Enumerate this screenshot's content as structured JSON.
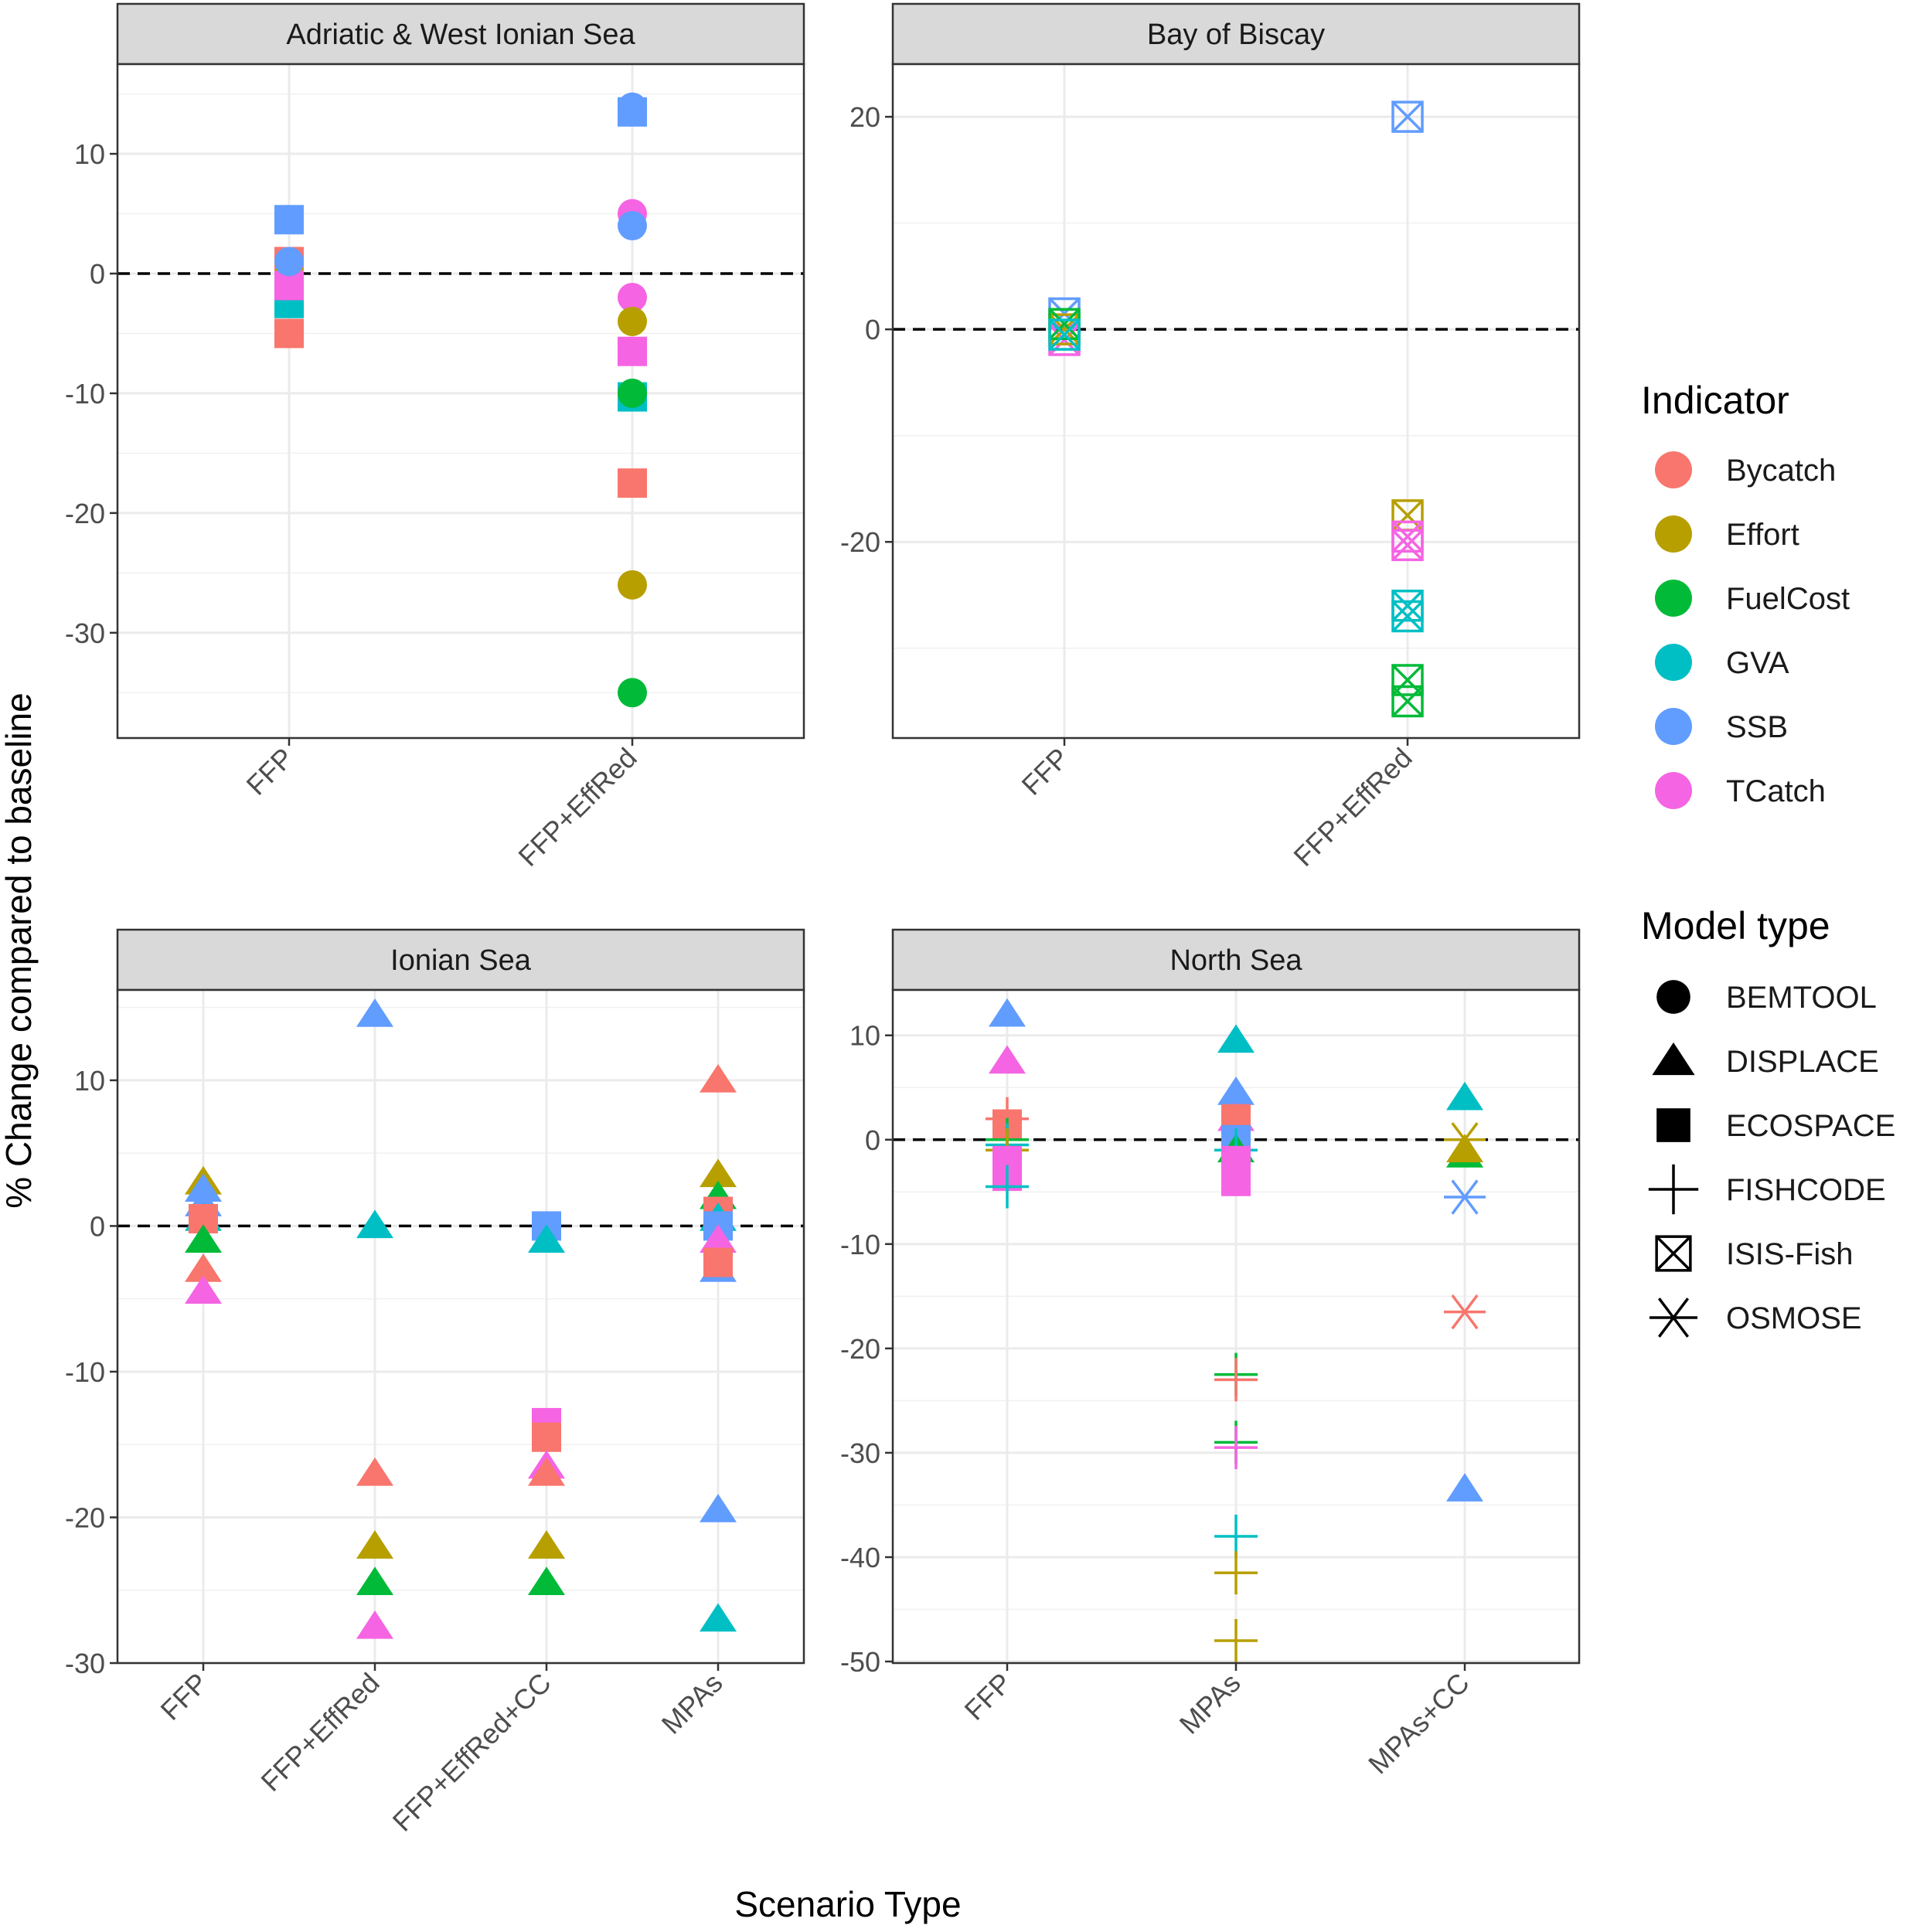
{
  "figure": {
    "y_axis_title": "% Change compared to baseline",
    "x_axis_title": "Scenario Type"
  },
  "legend": {
    "indicator_title": "Indicator",
    "indicators": [
      {
        "name": "Bycatch",
        "color": "#F8766D"
      },
      {
        "name": "Effort",
        "color": "#B79F00"
      },
      {
        "name": "FuelCost",
        "color": "#00BA38"
      },
      {
        "name": "GVA",
        "color": "#00BFC4"
      },
      {
        "name": "SSB",
        "color": "#619CFF"
      },
      {
        "name": "TCatch",
        "color": "#F564E3"
      }
    ],
    "model_title": "Model type",
    "models": [
      {
        "name": "BEMTOOL",
        "shape": "circle"
      },
      {
        "name": "DISPLACE",
        "shape": "triangle"
      },
      {
        "name": "ECOSPACE",
        "shape": "square"
      },
      {
        "name": "FISHCODE",
        "shape": "plus"
      },
      {
        "name": "ISIS-Fish",
        "shape": "boxcross"
      },
      {
        "name": "OSMOSE",
        "shape": "asterisk"
      }
    ]
  },
  "chart_data": [
    {
      "type": "scatter",
      "title": "Adriatic & West Ionian Sea",
      "categories": [
        "FFP",
        "FFP+EffRed"
      ],
      "ylim": [
        -37.5,
        16.2
      ],
      "yticks": [
        -30,
        -20,
        -10,
        0,
        10
      ],
      "reference_line": 0,
      "points": [
        {
          "x": "FFP",
          "y": -5.0,
          "indicator": "Bycatch",
          "model": "ECOSPACE"
        },
        {
          "x": "FFP",
          "y": 1.0,
          "indicator": "Bycatch",
          "model": "ECOSPACE"
        },
        {
          "x": "FFP",
          "y": 0.0,
          "indicator": "Effort",
          "model": "BEMTOOL"
        },
        {
          "x": "FFP",
          "y": -2.5,
          "indicator": "GVA",
          "model": "ECOSPACE"
        },
        {
          "x": "FFP",
          "y": -1.0,
          "indicator": "TCatch",
          "model": "ECOSPACE"
        },
        {
          "x": "FFP",
          "y": 4.5,
          "indicator": "SSB",
          "model": "ECOSPACE"
        },
        {
          "x": "FFP",
          "y": 1.0,
          "indicator": "SSB",
          "model": "BEMTOOL"
        },
        {
          "x": "FFP+EffRed",
          "y": 13.5,
          "indicator": "SSB",
          "model": "ECOSPACE"
        },
        {
          "x": "FFP+EffRed",
          "y": 13.9,
          "indicator": "SSB",
          "model": "BEMTOOL"
        },
        {
          "x": "FFP+EffRed",
          "y": 5.0,
          "indicator": "TCatch",
          "model": "BEMTOOL"
        },
        {
          "x": "FFP+EffRed",
          "y": 4.0,
          "indicator": "SSB",
          "model": "BEMTOOL"
        },
        {
          "x": "FFP+EffRed",
          "y": -2.0,
          "indicator": "TCatch",
          "model": "BEMTOOL"
        },
        {
          "x": "FFP+EffRed",
          "y": -4.0,
          "indicator": "Effort",
          "model": "BEMTOOL"
        },
        {
          "x": "FFP+EffRed",
          "y": -6.5,
          "indicator": "TCatch",
          "model": "ECOSPACE"
        },
        {
          "x": "FFP+EffRed",
          "y": -10.3,
          "indicator": "GVA",
          "model": "ECOSPACE"
        },
        {
          "x": "FFP+EffRed",
          "y": -10.0,
          "indicator": "FuelCost",
          "model": "BEMTOOL"
        },
        {
          "x": "FFP+EffRed",
          "y": -17.5,
          "indicator": "Bycatch",
          "model": "ECOSPACE"
        },
        {
          "x": "FFP+EffRed",
          "y": -26.0,
          "indicator": "Effort",
          "model": "BEMTOOL"
        },
        {
          "x": "FFP+EffRed",
          "y": -35.0,
          "indicator": "FuelCost",
          "model": "BEMTOOL"
        }
      ]
    },
    {
      "type": "scatter",
      "title": "Bay of Biscay",
      "categories": [
        "FFP",
        "FFP+EffRed"
      ],
      "ylim": [
        -37,
        23.5
      ],
      "yticks": [
        -20,
        0,
        20
      ],
      "reference_line": 0,
      "points": [
        {
          "x": "FFP",
          "y": 1.5,
          "indicator": "SSB",
          "model": "ISIS-Fish"
        },
        {
          "x": "FFP",
          "y": -1.0,
          "indicator": "TCatch",
          "model": "ISIS-Fish"
        },
        {
          "x": "FFP",
          "y": 0.0,
          "indicator": "Effort",
          "model": "ISIS-Fish"
        },
        {
          "x": "FFP",
          "y": 0.5,
          "indicator": "FuelCost",
          "model": "ISIS-Fish"
        },
        {
          "x": "FFP",
          "y": -0.5,
          "indicator": "GVA",
          "model": "ISIS-Fish"
        },
        {
          "x": "FFP+EffRed",
          "y": 20.0,
          "indicator": "SSB",
          "model": "ISIS-Fish"
        },
        {
          "x": "FFP+EffRed",
          "y": -17.5,
          "indicator": "Effort",
          "model": "ISIS-Fish"
        },
        {
          "x": "FFP+EffRed",
          "y": -19.5,
          "indicator": "TCatch",
          "model": "ISIS-Fish"
        },
        {
          "x": "FFP+EffRed",
          "y": -20.3,
          "indicator": "TCatch",
          "model": "ISIS-Fish"
        },
        {
          "x": "FFP+EffRed",
          "y": -26.0,
          "indicator": "GVA",
          "model": "ISIS-Fish"
        },
        {
          "x": "FFP+EffRed",
          "y": -27.0,
          "indicator": "GVA",
          "model": "ISIS-Fish"
        },
        {
          "x": "FFP+EffRed",
          "y": -33.0,
          "indicator": "FuelCost",
          "model": "ISIS-Fish"
        },
        {
          "x": "FFP+EffRed",
          "y": -35.0,
          "indicator": "FuelCost",
          "model": "ISIS-Fish"
        }
      ]
    },
    {
      "type": "scatter",
      "title": "Ionian Sea",
      "categories": [
        "FFP",
        "FFP+EffRed",
        "FFP+EffRed+CC",
        "MPAs"
      ],
      "ylim": [
        -30,
        16.2
      ],
      "yticks": [
        -30,
        -20,
        -10,
        0,
        10
      ],
      "reference_line": 0,
      "points": [
        {
          "x": "FFP",
          "y": 3.0,
          "indicator": "Effort",
          "model": "DISPLACE"
        },
        {
          "x": "FFP",
          "y": 2.5,
          "indicator": "SSB",
          "model": "DISPLACE"
        },
        {
          "x": "FFP",
          "y": 1.5,
          "indicator": "SSB",
          "model": "DISPLACE"
        },
        {
          "x": "FFP",
          "y": 0.5,
          "indicator": "GVA",
          "model": "DISPLACE"
        },
        {
          "x": "FFP",
          "y": 0.5,
          "indicator": "Bycatch",
          "model": "ECOSPACE"
        },
        {
          "x": "FFP",
          "y": -1.0,
          "indicator": "FuelCost",
          "model": "DISPLACE"
        },
        {
          "x": "FFP",
          "y": -3.0,
          "indicator": "Bycatch",
          "model": "DISPLACE"
        },
        {
          "x": "FFP",
          "y": -4.5,
          "indicator": "TCatch",
          "model": "DISPLACE"
        },
        {
          "x": "FFP+EffRed",
          "y": 14.5,
          "indicator": "SSB",
          "model": "DISPLACE"
        },
        {
          "x": "FFP+EffRed",
          "y": 0.0,
          "indicator": "GVA",
          "model": "DISPLACE"
        },
        {
          "x": "FFP+EffRed",
          "y": -17.0,
          "indicator": "Bycatch",
          "model": "DISPLACE"
        },
        {
          "x": "FFP+EffRed",
          "y": -22.0,
          "indicator": "Effort",
          "model": "DISPLACE"
        },
        {
          "x": "FFP+EffRed",
          "y": -24.5,
          "indicator": "FuelCost",
          "model": "DISPLACE"
        },
        {
          "x": "FFP+EffRed",
          "y": -27.5,
          "indicator": "TCatch",
          "model": "DISPLACE"
        },
        {
          "x": "FFP+EffRed+CC",
          "y": 0.0,
          "indicator": "SSB",
          "model": "ECOSPACE"
        },
        {
          "x": "FFP+EffRed+CC",
          "y": -1.0,
          "indicator": "GVA",
          "model": "DISPLACE"
        },
        {
          "x": "FFP+EffRed+CC",
          "y": -13.5,
          "indicator": "TCatch",
          "model": "ECOSPACE"
        },
        {
          "x": "FFP+EffRed+CC",
          "y": -14.5,
          "indicator": "Bycatch",
          "model": "ECOSPACE"
        },
        {
          "x": "FFP+EffRed+CC",
          "y": -16.5,
          "indicator": "TCatch",
          "model": "DISPLACE"
        },
        {
          "x": "FFP+EffRed+CC",
          "y": -17.0,
          "indicator": "Bycatch",
          "model": "DISPLACE"
        },
        {
          "x": "FFP+EffRed+CC",
          "y": -22.0,
          "indicator": "Effort",
          "model": "DISPLACE"
        },
        {
          "x": "FFP+EffRed+CC",
          "y": -24.5,
          "indicator": "FuelCost",
          "model": "DISPLACE"
        },
        {
          "x": "MPAs",
          "y": 10.0,
          "indicator": "Bycatch",
          "model": "DISPLACE"
        },
        {
          "x": "MPAs",
          "y": 3.5,
          "indicator": "Effort",
          "model": "DISPLACE"
        },
        {
          "x": "MPAs",
          "y": 2.0,
          "indicator": "FuelCost",
          "model": "DISPLACE"
        },
        {
          "x": "MPAs",
          "y": 1.0,
          "indicator": "Bycatch",
          "model": "ECOSPACE"
        },
        {
          "x": "MPAs",
          "y": 0.5,
          "indicator": "GVA",
          "model": "DISPLACE"
        },
        {
          "x": "MPAs",
          "y": 0.0,
          "indicator": "SSB",
          "model": "ECOSPACE"
        },
        {
          "x": "MPAs",
          "y": -1.0,
          "indicator": "TCatch",
          "model": "DISPLACE"
        },
        {
          "x": "MPAs",
          "y": -3.0,
          "indicator": "SSB",
          "model": "DISPLACE"
        },
        {
          "x": "MPAs",
          "y": -2.5,
          "indicator": "Bycatch",
          "model": "ECOSPACE"
        },
        {
          "x": "MPAs",
          "y": -19.5,
          "indicator": "SSB",
          "model": "DISPLACE"
        },
        {
          "x": "MPAs",
          "y": -27.0,
          "indicator": "GVA",
          "model": "DISPLACE"
        }
      ]
    },
    {
      "type": "scatter",
      "title": "North Sea",
      "categories": [
        "FFP",
        "MPAs",
        "MPAs+CC"
      ],
      "ylim": [
        -50,
        14.2
      ],
      "yticks": [
        -50,
        -40,
        -30,
        -20,
        -10,
        0,
        10
      ],
      "reference_line": 0,
      "points": [
        {
          "x": "FFP",
          "y": 12.0,
          "indicator": "SSB",
          "model": "DISPLACE"
        },
        {
          "x": "FFP",
          "y": 7.5,
          "indicator": "TCatch",
          "model": "DISPLACE"
        },
        {
          "x": "FFP",
          "y": 2.0,
          "indicator": "Bycatch",
          "model": "FISHCODE"
        },
        {
          "x": "FFP",
          "y": 1.5,
          "indicator": "Bycatch",
          "model": "ECOSPACE"
        },
        {
          "x": "FFP",
          "y": 0.0,
          "indicator": "FuelCost",
          "model": "FISHCODE"
        },
        {
          "x": "FFP",
          "y": -0.5,
          "indicator": "GVA",
          "model": "FISHCODE"
        },
        {
          "x": "FFP",
          "y": -1.0,
          "indicator": "Effort",
          "model": "FISHCODE"
        },
        {
          "x": "FFP",
          "y": -2.0,
          "indicator": "TCatch",
          "model": "ECOSPACE"
        },
        {
          "x": "FFP",
          "y": -3.5,
          "indicator": "TCatch",
          "model": "ECOSPACE"
        },
        {
          "x": "FFP",
          "y": -4.5,
          "indicator": "GVA",
          "model": "FISHCODE"
        },
        {
          "x": "MPAs",
          "y": 9.5,
          "indicator": "GVA",
          "model": "DISPLACE"
        },
        {
          "x": "MPAs",
          "y": 4.5,
          "indicator": "SSB",
          "model": "DISPLACE"
        },
        {
          "x": "MPAs",
          "y": 2.0,
          "indicator": "TCatch",
          "model": "DISPLACE"
        },
        {
          "x": "MPAs",
          "y": 2.0,
          "indicator": "Bycatch",
          "model": "ECOSPACE"
        },
        {
          "x": "MPAs",
          "y": 0.0,
          "indicator": "SSB",
          "model": "ECOSPACE"
        },
        {
          "x": "MPAs",
          "y": -1.0,
          "indicator": "FuelCost",
          "model": "DISPLACE"
        },
        {
          "x": "MPAs",
          "y": -1.0,
          "indicator": "GVA",
          "model": "FISHCODE"
        },
        {
          "x": "MPAs",
          "y": -2.0,
          "indicator": "TCatch",
          "model": "ECOSPACE"
        },
        {
          "x": "MPAs",
          "y": -4.0,
          "indicator": "TCatch",
          "model": "ECOSPACE"
        },
        {
          "x": "MPAs",
          "y": -22.5,
          "indicator": "FuelCost",
          "model": "FISHCODE"
        },
        {
          "x": "MPAs",
          "y": -23.0,
          "indicator": "Bycatch",
          "model": "FISHCODE"
        },
        {
          "x": "MPAs",
          "y": -29.0,
          "indicator": "FuelCost",
          "model": "FISHCODE"
        },
        {
          "x": "MPAs",
          "y": -29.5,
          "indicator": "TCatch",
          "model": "FISHCODE"
        },
        {
          "x": "MPAs",
          "y": -38.0,
          "indicator": "GVA",
          "model": "FISHCODE"
        },
        {
          "x": "MPAs",
          "y": -41.5,
          "indicator": "Effort",
          "model": "FISHCODE"
        },
        {
          "x": "MPAs",
          "y": -48.0,
          "indicator": "Effort",
          "model": "FISHCODE"
        },
        {
          "x": "MPAs+CC",
          "y": 4.0,
          "indicator": "GVA",
          "model": "DISPLACE"
        },
        {
          "x": "MPAs+CC",
          "y": 0.0,
          "indicator": "Effort",
          "model": "OSMOSE"
        },
        {
          "x": "MPAs+CC",
          "y": -1.5,
          "indicator": "FuelCost",
          "model": "DISPLACE"
        },
        {
          "x": "MPAs+CC",
          "y": -1.0,
          "indicator": "Effort",
          "model": "DISPLACE"
        },
        {
          "x": "MPAs+CC",
          "y": -5.5,
          "indicator": "SSB",
          "model": "OSMOSE"
        },
        {
          "x": "MPAs+CC",
          "y": -16.5,
          "indicator": "Bycatch",
          "model": "OSMOSE"
        },
        {
          "x": "MPAs+CC",
          "y": -33.5,
          "indicator": "SSB",
          "model": "DISPLACE"
        }
      ]
    }
  ]
}
